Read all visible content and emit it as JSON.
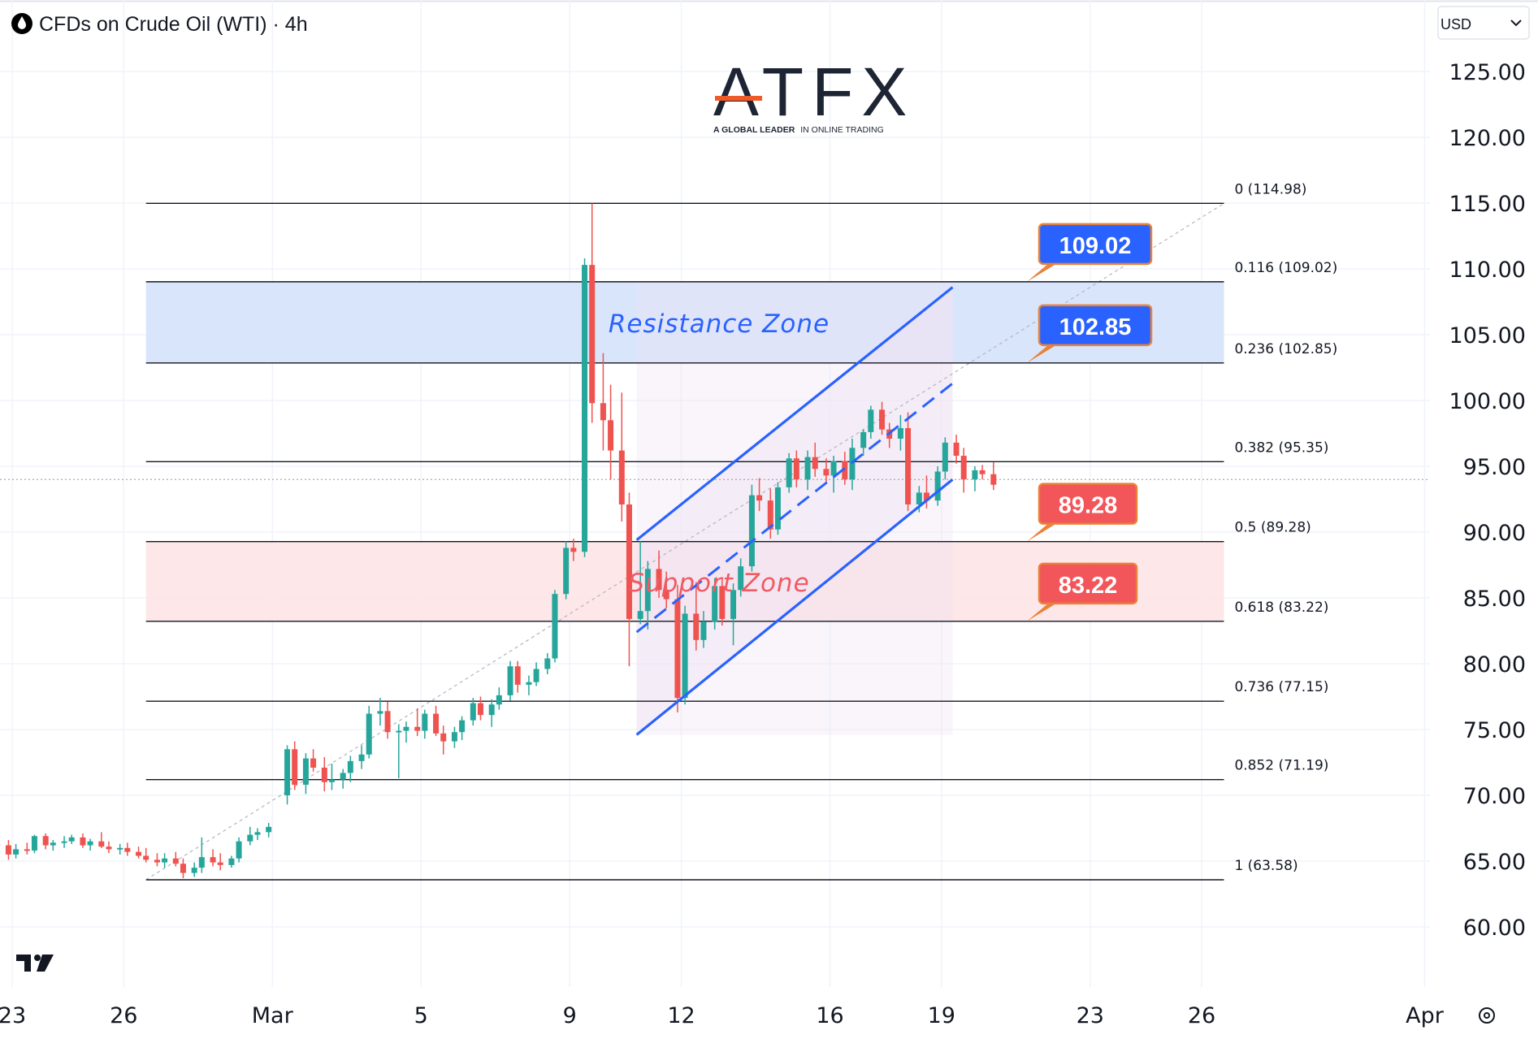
{
  "header": {
    "title": "CFDs on Crude Oil (WTI) · 4h",
    "icon": "oil-drop-icon",
    "currency": "USD"
  },
  "brand": {
    "logo_text": "ATFX",
    "tagline": "A GLOBAL LEADER IN ONLINE TRADING",
    "tagline_parts": [
      "A GLOBAL LEADER",
      "IN ONLINE TRADING"
    ],
    "logo_icon": "tradingview-logo-icon"
  },
  "colors": {
    "bull": "#26a69a",
    "bear": "#ef5350",
    "channel": "#2962ff",
    "resistance_fill": "#d6e4fb",
    "support_fill": "#fde4e6",
    "label_blue": "#2962ff",
    "label_red": "#f2555a"
  },
  "chart_data": {
    "type": "candlestick",
    "instrument": "CFDs on Crude Oil (WTI)",
    "timeframe": "4h",
    "ylim": [
      58,
      128
    ],
    "y_ticks": [
      125.0,
      120.0,
      115.0,
      110.0,
      105.0,
      100.0,
      95.0,
      90.0,
      85.0,
      80.0,
      75.0,
      70.0,
      65.0,
      60.0
    ],
    "y_tick_labels": [
      "125.00",
      "120.00",
      "115.00",
      "110.00",
      "105.00",
      "100.00",
      "95.00",
      "90.00",
      "85.00",
      "80.00",
      "75.00",
      "70.00",
      "65.00",
      "60.00"
    ],
    "x_ticks": [
      {
        "label": "23",
        "day": -6
      },
      {
        "label": "26",
        "day": -3
      },
      {
        "label": "Mar",
        "day": 1
      },
      {
        "label": "5",
        "day": 5
      },
      {
        "label": "9",
        "day": 9
      },
      {
        "label": "12",
        "day": 12
      },
      {
        "label": "16",
        "day": 16
      },
      {
        "label": "19",
        "day": 19
      },
      {
        "label": "23",
        "day": 23
      },
      {
        "label": "26",
        "day": 26
      },
      {
        "label": "Apr",
        "day": 32
      }
    ],
    "x_range_days": [
      -6.4,
      33.8
    ],
    "grid": true,
    "fibonacci": [
      {
        "ratio": "0",
        "value": 114.98,
        "label": "0 (114.98)"
      },
      {
        "ratio": "0.116",
        "value": 109.02,
        "label": "0.116 (109.02)"
      },
      {
        "ratio": "0.236",
        "value": 102.85,
        "label": "0.236 (102.85)"
      },
      {
        "ratio": "0.382",
        "value": 95.35,
        "label": "0.382 (95.35)"
      },
      {
        "ratio": "0.5",
        "value": 89.28,
        "label": "0.5 (89.28)"
      },
      {
        "ratio": "0.618",
        "value": 83.22,
        "label": "0.618 (83.22)"
      },
      {
        "ratio": "0.736",
        "value": 77.15,
        "label": "0.736 (77.15)"
      },
      {
        "ratio": "0.852",
        "value": 71.19,
        "label": "0.852 (71.19)"
      },
      {
        "ratio": "1",
        "value": 63.58,
        "label": "1 (63.58)"
      }
    ],
    "fib_x_range_days": [
      -2.4,
      26.6
    ],
    "zones": [
      {
        "name": "Resistance Zone",
        "low": 102.85,
        "high": 109.02
      },
      {
        "name": "Support Zone",
        "low": 83.22,
        "high": 89.28
      }
    ],
    "price_labels": [
      {
        "text": "109.02",
        "value": 109.02,
        "color": "blue"
      },
      {
        "text": "102.85",
        "value": 102.85,
        "color": "blue"
      },
      {
        "text": "89.28",
        "value": 89.28,
        "color": "red"
      },
      {
        "text": "83.22",
        "value": 83.22,
        "color": "red"
      }
    ],
    "channel": {
      "upper": [
        [
          10.8,
          89.4
        ],
        [
          19.3,
          108.6
        ]
      ],
      "middle": [
        [
          10.8,
          82.4
        ],
        [
          19.3,
          101.3
        ]
      ],
      "lower": [
        [
          10.8,
          74.6
        ],
        [
          19.3,
          94.0
        ]
      ],
      "shade_start_day": 10.8,
      "shade_end_day": 19.3
    },
    "current_price": 94.0,
    "candles": [
      {
        "d": -6.4,
        "o": 66.3,
        "h": 66.8,
        "l": 65.8,
        "c": 66.2
      },
      {
        "d": -6.1,
        "o": 66.2,
        "h": 66.6,
        "l": 65.1,
        "c": 65.5
      },
      {
        "d": -5.9,
        "o": 65.5,
        "h": 66.3,
        "l": 65.2,
        "c": 65.9
      },
      {
        "d": -5.6,
        "o": 65.9,
        "h": 66.4,
        "l": 65.5,
        "c": 65.8
      },
      {
        "d": -5.4,
        "o": 65.8,
        "h": 67.0,
        "l": 65.6,
        "c": 66.9
      },
      {
        "d": -5.1,
        "o": 66.9,
        "h": 67.1,
        "l": 65.9,
        "c": 66.2
      },
      {
        "d": -4.9,
        "o": 66.2,
        "h": 66.6,
        "l": 65.8,
        "c": 66.4
      },
      {
        "d": -4.6,
        "o": 66.4,
        "h": 66.9,
        "l": 66.0,
        "c": 66.5
      },
      {
        "d": -4.4,
        "o": 66.5,
        "h": 67.0,
        "l": 66.3,
        "c": 66.8
      },
      {
        "d": -4.1,
        "o": 66.8,
        "h": 67.1,
        "l": 66.0,
        "c": 66.2
      },
      {
        "d": -3.9,
        "o": 66.2,
        "h": 66.7,
        "l": 65.8,
        "c": 66.5
      },
      {
        "d": -3.6,
        "o": 66.5,
        "h": 67.2,
        "l": 66.0,
        "c": 66.1
      },
      {
        "d": -3.4,
        "o": 66.1,
        "h": 66.5,
        "l": 65.6,
        "c": 65.9
      },
      {
        "d": -3.1,
        "o": 65.9,
        "h": 66.3,
        "l": 65.5,
        "c": 66.0
      },
      {
        "d": -2.9,
        "o": 66.0,
        "h": 66.4,
        "l": 65.4,
        "c": 65.7
      },
      {
        "d": -2.6,
        "o": 65.7,
        "h": 66.1,
        "l": 65.2,
        "c": 65.4
      },
      {
        "d": -2.4,
        "o": 65.4,
        "h": 66.0,
        "l": 64.9,
        "c": 65.1
      },
      {
        "d": -2.1,
        "o": 65.1,
        "h": 65.6,
        "l": 64.6,
        "c": 64.9
      },
      {
        "d": -1.9,
        "o": 64.9,
        "h": 65.6,
        "l": 64.5,
        "c": 65.2
      },
      {
        "d": -1.6,
        "o": 65.2,
        "h": 65.7,
        "l": 64.6,
        "c": 64.8
      },
      {
        "d": -1.4,
        "o": 64.8,
        "h": 65.2,
        "l": 63.7,
        "c": 64.1
      },
      {
        "d": -1.1,
        "o": 64.1,
        "h": 64.9,
        "l": 63.8,
        "c": 64.5
      },
      {
        "d": -0.9,
        "o": 64.5,
        "h": 66.8,
        "l": 64.1,
        "c": 65.3
      },
      {
        "d": -0.6,
        "o": 65.3,
        "h": 65.9,
        "l": 64.6,
        "c": 64.9
      },
      {
        "d": -0.4,
        "o": 64.9,
        "h": 65.6,
        "l": 64.3,
        "c": 64.7
      },
      {
        "d": -0.1,
        "o": 64.7,
        "h": 65.4,
        "l": 64.5,
        "c": 65.2
      },
      {
        "d": 0.1,
        "o": 65.2,
        "h": 66.8,
        "l": 64.9,
        "c": 66.5
      },
      {
        "d": 0.4,
        "o": 66.5,
        "h": 67.6,
        "l": 66.2,
        "c": 67.0
      },
      {
        "d": 0.6,
        "o": 67.0,
        "h": 67.5,
        "l": 66.6,
        "c": 67.2
      },
      {
        "d": 0.9,
        "o": 67.2,
        "h": 67.9,
        "l": 66.8,
        "c": 67.6
      },
      {
        "d": 1.4,
        "o": 70.0,
        "h": 73.8,
        "l": 69.3,
        "c": 73.5
      },
      {
        "d": 1.6,
        "o": 73.5,
        "h": 74.1,
        "l": 70.4,
        "c": 70.8
      },
      {
        "d": 1.9,
        "o": 70.8,
        "h": 73.2,
        "l": 70.1,
        "c": 72.8
      },
      {
        "d": 2.1,
        "o": 72.8,
        "h": 73.5,
        "l": 71.8,
        "c": 72.1
      },
      {
        "d": 2.4,
        "o": 72.1,
        "h": 72.9,
        "l": 70.3,
        "c": 71.0
      },
      {
        "d": 2.6,
        "o": 71.0,
        "h": 72.4,
        "l": 70.4,
        "c": 71.2
      },
      {
        "d": 2.9,
        "o": 71.2,
        "h": 72.0,
        "l": 70.5,
        "c": 71.7
      },
      {
        "d": 3.1,
        "o": 71.7,
        "h": 73.0,
        "l": 71.0,
        "c": 72.6
      },
      {
        "d": 3.4,
        "o": 72.6,
        "h": 73.8,
        "l": 72.0,
        "c": 73.1
      },
      {
        "d": 3.6,
        "o": 73.1,
        "h": 76.8,
        "l": 72.8,
        "c": 76.2
      },
      {
        "d": 3.9,
        "o": 76.2,
        "h": 77.4,
        "l": 75.3,
        "c": 76.4
      },
      {
        "d": 4.1,
        "o": 76.4,
        "h": 77.1,
        "l": 74.3,
        "c": 74.8
      },
      {
        "d": 4.4,
        "o": 74.8,
        "h": 75.4,
        "l": 71.3,
        "c": 74.9
      },
      {
        "d": 4.6,
        "o": 74.9,
        "h": 75.6,
        "l": 74.0,
        "c": 75.2
      },
      {
        "d": 4.9,
        "o": 75.2,
        "h": 76.6,
        "l": 74.5,
        "c": 74.9
      },
      {
        "d": 5.1,
        "o": 74.9,
        "h": 76.5,
        "l": 74.3,
        "c": 76.2
      },
      {
        "d": 5.4,
        "o": 76.2,
        "h": 76.8,
        "l": 74.5,
        "c": 74.7
      },
      {
        "d": 5.6,
        "o": 74.7,
        "h": 75.3,
        "l": 73.1,
        "c": 74.1
      },
      {
        "d": 5.9,
        "o": 74.1,
        "h": 75.2,
        "l": 73.6,
        "c": 74.8
      },
      {
        "d": 6.1,
        "o": 74.8,
        "h": 76.0,
        "l": 74.2,
        "c": 75.7
      },
      {
        "d": 6.4,
        "o": 75.7,
        "h": 77.4,
        "l": 75.3,
        "c": 77.0
      },
      {
        "d": 6.6,
        "o": 77.0,
        "h": 77.5,
        "l": 75.7,
        "c": 76.1
      },
      {
        "d": 6.9,
        "o": 76.1,
        "h": 77.3,
        "l": 75.2,
        "c": 76.9
      },
      {
        "d": 7.1,
        "o": 76.9,
        "h": 78.2,
        "l": 76.5,
        "c": 77.6
      },
      {
        "d": 7.4,
        "o": 77.6,
        "h": 80.2,
        "l": 77.2,
        "c": 79.8
      },
      {
        "d": 7.6,
        "o": 79.8,
        "h": 80.2,
        "l": 77.8,
        "c": 78.4
      },
      {
        "d": 7.9,
        "o": 78.4,
        "h": 79.1,
        "l": 77.6,
        "c": 78.6
      },
      {
        "d": 8.1,
        "o": 78.6,
        "h": 80.1,
        "l": 78.3,
        "c": 79.6
      },
      {
        "d": 8.4,
        "o": 79.6,
        "h": 80.8,
        "l": 79.2,
        "c": 80.4
      },
      {
        "d": 8.6,
        "o": 80.4,
        "h": 85.6,
        "l": 80.1,
        "c": 85.3
      },
      {
        "d": 8.9,
        "o": 85.3,
        "h": 89.3,
        "l": 84.9,
        "c": 88.8
      },
      {
        "d": 9.1,
        "o": 88.8,
        "h": 89.5,
        "l": 87.8,
        "c": 88.5
      },
      {
        "d": 9.4,
        "o": 88.5,
        "h": 110.8,
        "l": 88.1,
        "c": 110.3
      },
      {
        "d": 9.6,
        "o": 110.3,
        "h": 114.98,
        "l": 98.3,
        "c": 99.8
      },
      {
        "d": 9.9,
        "o": 99.8,
        "h": 103.6,
        "l": 96.2,
        "c": 98.5
      },
      {
        "d": 10.1,
        "o": 98.5,
        "h": 101.2,
        "l": 94.0,
        "c": 96.2
      },
      {
        "d": 10.4,
        "o": 96.2,
        "h": 100.6,
        "l": 90.8,
        "c": 92.1
      },
      {
        "d": 10.6,
        "o": 92.1,
        "h": 93.0,
        "l": 79.8,
        "c": 83.4
      },
      {
        "d": 10.9,
        "o": 83.4,
        "h": 89.3,
        "l": 83.0,
        "c": 84.0
      },
      {
        "d": 11.1,
        "o": 84.0,
        "h": 87.8,
        "l": 82.6,
        "c": 87.2
      },
      {
        "d": 11.4,
        "o": 87.2,
        "h": 88.6,
        "l": 85.0,
        "c": 85.6
      },
      {
        "d": 11.6,
        "o": 85.6,
        "h": 87.0,
        "l": 84.2,
        "c": 84.9
      },
      {
        "d": 11.9,
        "o": 84.9,
        "h": 86.0,
        "l": 76.3,
        "c": 77.4
      },
      {
        "d": 12.1,
        "o": 77.4,
        "h": 84.4,
        "l": 76.9,
        "c": 83.8
      },
      {
        "d": 12.4,
        "o": 83.8,
        "h": 86.2,
        "l": 81.0,
        "c": 81.8
      },
      {
        "d": 12.6,
        "o": 81.8,
        "h": 84.0,
        "l": 81.2,
        "c": 83.2
      },
      {
        "d": 12.9,
        "o": 83.2,
        "h": 86.5,
        "l": 82.6,
        "c": 85.9
      },
      {
        "d": 13.1,
        "o": 85.9,
        "h": 86.4,
        "l": 82.9,
        "c": 83.4
      },
      {
        "d": 13.4,
        "o": 83.4,
        "h": 86.1,
        "l": 81.4,
        "c": 85.6
      },
      {
        "d": 13.6,
        "o": 85.6,
        "h": 88.0,
        "l": 85.1,
        "c": 87.4
      },
      {
        "d": 13.9,
        "o": 87.4,
        "h": 93.6,
        "l": 87.0,
        "c": 92.8
      },
      {
        "d": 14.1,
        "o": 92.8,
        "h": 94.1,
        "l": 91.6,
        "c": 92.4
      },
      {
        "d": 14.4,
        "o": 92.4,
        "h": 93.3,
        "l": 89.5,
        "c": 90.2
      },
      {
        "d": 14.6,
        "o": 90.2,
        "h": 93.8,
        "l": 89.8,
        "c": 93.4
      },
      {
        "d": 14.9,
        "o": 93.4,
        "h": 96.0,
        "l": 93.0,
        "c": 95.6
      },
      {
        "d": 15.1,
        "o": 95.6,
        "h": 96.2,
        "l": 93.4,
        "c": 94.0
      },
      {
        "d": 15.4,
        "o": 94.0,
        "h": 96.2,
        "l": 93.2,
        "c": 95.7
      },
      {
        "d": 15.6,
        "o": 95.7,
        "h": 96.8,
        "l": 94.2,
        "c": 94.8
      },
      {
        "d": 15.9,
        "o": 94.8,
        "h": 95.6,
        "l": 93.7,
        "c": 94.3
      },
      {
        "d": 16.1,
        "o": 94.3,
        "h": 95.8,
        "l": 93.0,
        "c": 95.4
      },
      {
        "d": 16.4,
        "o": 95.4,
        "h": 96.1,
        "l": 93.6,
        "c": 94.0
      },
      {
        "d": 16.6,
        "o": 94.0,
        "h": 97.1,
        "l": 93.2,
        "c": 96.4
      },
      {
        "d": 16.9,
        "o": 96.4,
        "h": 97.8,
        "l": 95.8,
        "c": 97.6
      },
      {
        "d": 17.1,
        "o": 97.6,
        "h": 99.6,
        "l": 97.1,
        "c": 99.3
      },
      {
        "d": 17.4,
        "o": 99.3,
        "h": 99.9,
        "l": 97.4,
        "c": 97.8
      },
      {
        "d": 17.6,
        "o": 97.8,
        "h": 98.3,
        "l": 96.4,
        "c": 97.1
      },
      {
        "d": 17.9,
        "o": 97.1,
        "h": 98.9,
        "l": 96.2,
        "c": 97.9
      },
      {
        "d": 18.1,
        "o": 97.9,
        "h": 99.1,
        "l": 91.6,
        "c": 92.1
      },
      {
        "d": 18.4,
        "o": 92.1,
        "h": 93.5,
        "l": 91.5,
        "c": 93.0
      },
      {
        "d": 18.6,
        "o": 93.0,
        "h": 94.3,
        "l": 91.8,
        "c": 92.4
      },
      {
        "d": 18.9,
        "o": 92.4,
        "h": 95.0,
        "l": 92.0,
        "c": 94.6
      },
      {
        "d": 19.1,
        "o": 94.6,
        "h": 97.2,
        "l": 94.0,
        "c": 96.8
      },
      {
        "d": 19.4,
        "o": 96.8,
        "h": 97.4,
        "l": 95.2,
        "c": 95.8
      },
      {
        "d": 19.6,
        "o": 95.8,
        "h": 96.4,
        "l": 93.0,
        "c": 94.0
      },
      {
        "d": 19.9,
        "o": 94.0,
        "h": 95.0,
        "l": 93.1,
        "c": 94.7
      },
      {
        "d": 20.1,
        "o": 94.7,
        "h": 95.1,
        "l": 94.0,
        "c": 94.4
      },
      {
        "d": 20.4,
        "o": 94.4,
        "h": 95.3,
        "l": 93.2,
        "c": 93.6
      }
    ]
  }
}
